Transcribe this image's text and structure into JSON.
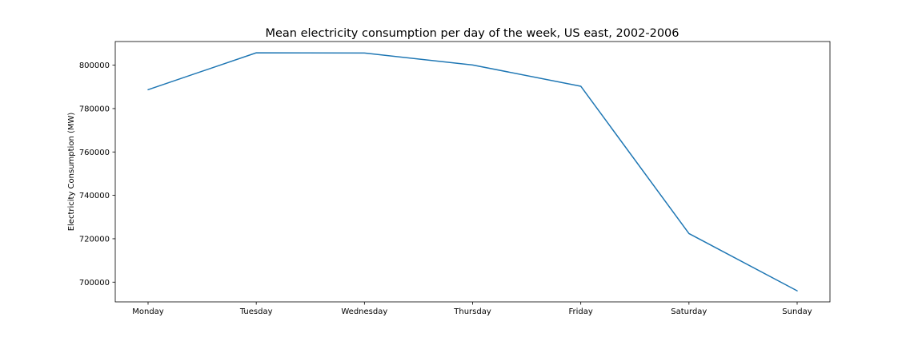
{
  "chart_data": {
    "type": "line",
    "title": "Mean electricity consumption per day of the week, US east, 2002-2006",
    "xlabel": "",
    "ylabel": "Electricity Consumption (MW)",
    "categories": [
      "Monday",
      "Tuesday",
      "Wednesday",
      "Thursday",
      "Friday",
      "Saturday",
      "Sunday"
    ],
    "series": [
      {
        "values": [
          788700,
          805700,
          805600,
          800100,
          790300,
          722400,
          696000
        ],
        "color": "#1f77b4"
      }
    ],
    "yticks": [
      700000,
      720000,
      740000,
      760000,
      780000,
      800000
    ],
    "ylim": [
      690900,
      810900
    ],
    "grid": false,
    "legend": "none"
  }
}
